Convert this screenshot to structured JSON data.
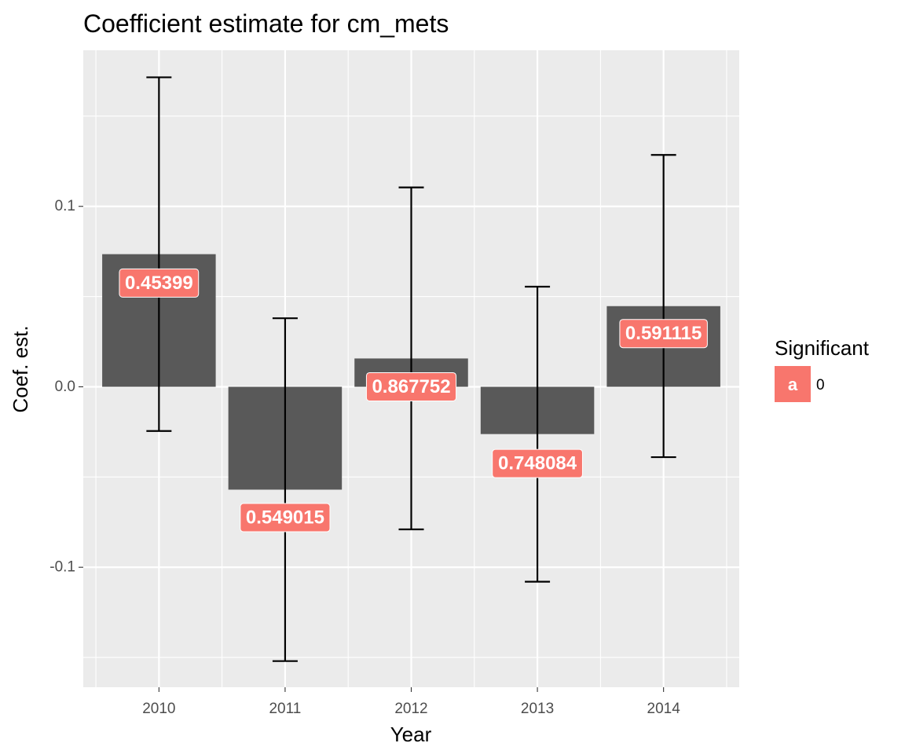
{
  "chart_data": {
    "type": "bar",
    "title": "Coefficient estimate for cm_mets",
    "xlabel": "Year",
    "ylabel": "Coef. est.",
    "categories": [
      "2010",
      "2011",
      "2012",
      "2013",
      "2014"
    ],
    "values": [
      0.0735,
      -0.057,
      0.0157,
      -0.0262,
      0.0447
    ],
    "error_lower": [
      -0.0245,
      -0.152,
      -0.079,
      -0.108,
      -0.039
    ],
    "error_upper": [
      0.1715,
      0.038,
      0.1105,
      0.0555,
      0.1285
    ],
    "point_labels": [
      "0.45399",
      "0.549015",
      "0.867752",
      "0.748084",
      "0.591115"
    ],
    "label_y": [
      0.0575,
      -0.0725,
      0.0,
      -0.0425,
      0.0295
    ],
    "ylim": [
      -0.1665,
      0.1865
    ],
    "y_ticks": [
      -0.1,
      0.0,
      0.1
    ],
    "y_tick_labels": [
      "-0.1",
      "0.0",
      "0.1"
    ],
    "grid": true,
    "legend": {
      "title": "Significant",
      "placement": "right",
      "entries": [
        {
          "key_text": "a",
          "label": "0",
          "color": "#F8766D"
        }
      ]
    },
    "colors": {
      "bar": "#595959",
      "panel": "#EBEBEB",
      "grid": "#FFFFFF",
      "label_fill": "#F8766D",
      "error_bar": "#000000"
    }
  }
}
